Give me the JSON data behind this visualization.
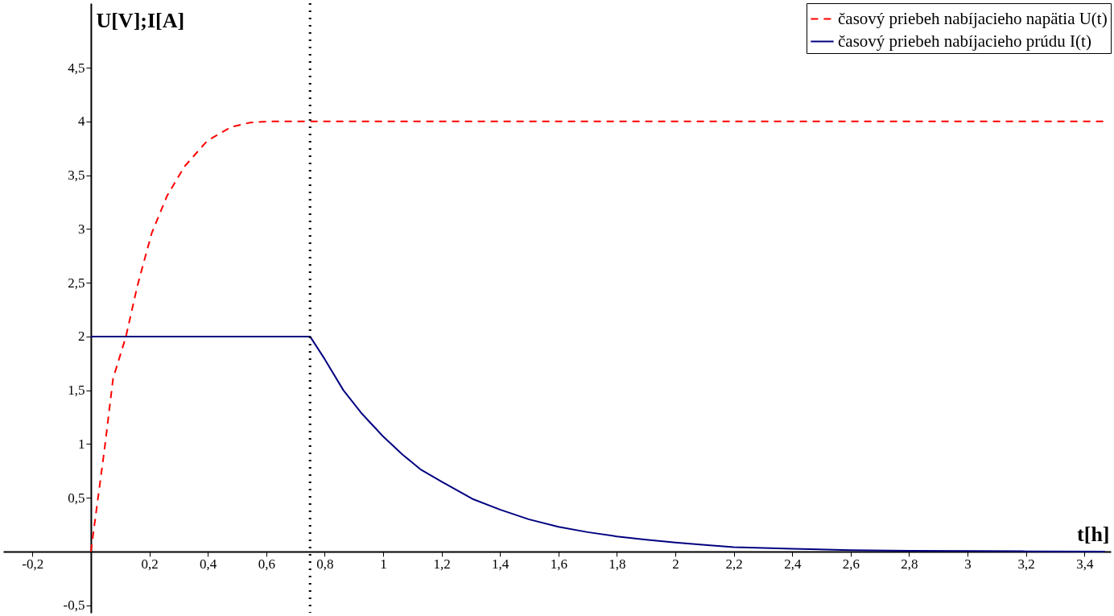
{
  "chart_data": {
    "type": "line",
    "xlabel": "t[h]",
    "ylabel": "U[V];I[A]",
    "xlim": [
      -0.3,
      3.49
    ],
    "ylim": [
      -0.57,
      5.1
    ],
    "xticks": [
      {
        "value": -0.2,
        "label": "-0,2"
      },
      {
        "value": 0.2,
        "label": "0,2"
      },
      {
        "value": 0.4,
        "label": "0,4"
      },
      {
        "value": 0.6,
        "label": "0,6"
      },
      {
        "value": 0.8,
        "label": "0,8"
      },
      1,
      {
        "value": 1.2,
        "label": "1,2"
      },
      {
        "value": 1.4,
        "label": "1,4"
      },
      {
        "value": 1.6,
        "label": "1,6"
      },
      {
        "value": 1.8,
        "label": "1,8"
      },
      2,
      {
        "value": 2.2,
        "label": "2,2"
      },
      {
        "value": 2.4,
        "label": "2,4"
      },
      {
        "value": 2.6,
        "label": "2,6"
      },
      {
        "value": 2.8,
        "label": "2,8"
      },
      3,
      {
        "value": 3.2,
        "label": "3,2"
      },
      {
        "value": 3.4,
        "label": "3,4"
      }
    ],
    "yticks": [
      {
        "value": -0.5,
        "label": "-0,5"
      },
      {
        "value": 0.5,
        "label": "0,5"
      },
      1,
      {
        "value": 1.5,
        "label": "1,5"
      },
      2,
      {
        "value": 2.5,
        "label": "2,5"
      },
      3,
      {
        "value": 3.5,
        "label": "3,5"
      },
      4,
      {
        "value": 4.5,
        "label": "4,5"
      }
    ],
    "grid": false,
    "legend": "top right",
    "marker": "none",
    "series": [
      {
        "name": "časový priebeh nabíjacieho napätia U(t)",
        "color": "#ff0000",
        "line_style": "dashed",
        "x": [
          0,
          0.047,
          0.076,
          0.12,
          0.159,
          0.208,
          0.261,
          0.32,
          0.398,
          0.481,
          0.545,
          0.603,
          3.47
        ],
        "values": [
          0,
          0.96,
          1.61,
          2.0,
          2.47,
          2.96,
          3.31,
          3.58,
          3.82,
          3.95,
          3.99,
          4.0,
          4.0
        ]
      },
      {
        "name": "časový priebeh nabíjacieho prúdu I(t)",
        "color": "#000080",
        "line_style": "solid",
        "x": [
          0,
          0.75,
          0.8,
          0.864,
          0.928,
          1.0,
          1.067,
          1.13,
          1.2,
          1.305,
          1.4,
          1.498,
          1.6,
          1.7,
          1.8,
          1.9,
          2.0,
          2.11,
          2.2,
          2.4,
          2.6,
          2.8,
          3.2,
          3.47
        ],
        "values": [
          2,
          2,
          1.79,
          1.5,
          1.28,
          1.07,
          0.9,
          0.76,
          0.65,
          0.49,
          0.39,
          0.3,
          0.23,
          0.18,
          0.14,
          0.11,
          0.084,
          0.06,
          0.04,
          0.025,
          0.012,
          0.006,
          0.002,
          0
        ]
      }
    ],
    "ref_lines": [
      {
        "axis": "x",
        "value": 0.75,
        "label": null,
        "color": "#000000",
        "line_style": "dotted"
      }
    ]
  }
}
